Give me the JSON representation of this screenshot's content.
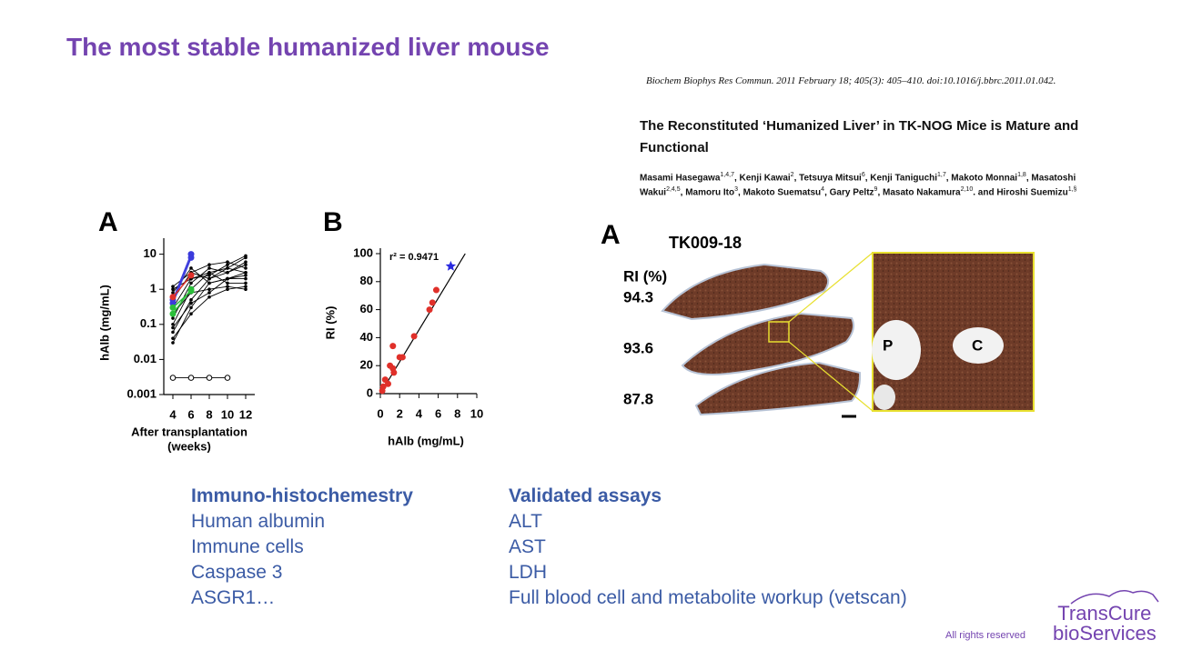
{
  "header": {
    "title": "The most stable humanized liver mouse"
  },
  "paper": {
    "citation": "Biochem Biophys Res Commun. 2011 February 18; 405(3): 405–410. doi:10.1016/j.bbrc.2011.01.042.",
    "title": "The Reconstituted ‘Humanized Liver’ in TK-NOG Mice is Mature and Functional",
    "authors": [
      {
        "text": "Masami Hasegawa",
        "sup": "1,4,7"
      },
      {
        "text": ", Kenji Kawai",
        "sup": "2"
      },
      {
        "text": ", Tetsuya Mitsui",
        "sup": "6"
      },
      {
        "text": ", Kenji Taniguchi",
        "sup": "1,7"
      },
      {
        "text": ", Makoto Monnai",
        "sup": "1,8"
      },
      {
        "text": ", Masatoshi Wakui",
        "sup": "2,4,5"
      },
      {
        "text": ", Mamoru Ito",
        "sup": "3"
      },
      {
        "text": ", Makoto Suematsu",
        "sup": "4"
      },
      {
        "text": ", Gary Peltz",
        "sup": "9"
      },
      {
        "text": ", Masato Nakamura",
        "sup": "2,10"
      },
      {
        "text": ". and Hiroshi Suemizu",
        "sup": "1,§"
      }
    ]
  },
  "figure_a": {
    "letter": "A",
    "chart": {
      "type": "line",
      "log_y": true,
      "ylabel": "hAlb (mg/mL)",
      "xlabel": [
        "After transplantation",
        "(weeks)"
      ],
      "xlim": [
        3,
        13
      ],
      "xticks": [
        4,
        6,
        8,
        10,
        12
      ],
      "ylim": [
        0.001,
        20
      ],
      "yticks": [
        0.001,
        0.01,
        0.1,
        1,
        10
      ],
      "series": [
        {
          "color": "#000000",
          "marker": "dot",
          "x": [
            4,
            6,
            8,
            10,
            12
          ],
          "values": [
            0.03,
            0.3,
            1.5,
            2,
            3
          ]
        },
        {
          "color": "#000000",
          "marker": "dot",
          "x": [
            4,
            6,
            8,
            10,
            12
          ],
          "values": [
            0.06,
            0.5,
            2,
            3,
            5
          ]
        },
        {
          "color": "#000000",
          "marker": "dot",
          "x": [
            4,
            6,
            8,
            10,
            12
          ],
          "values": [
            0.1,
            1,
            3,
            4,
            8
          ]
        },
        {
          "color": "#000000",
          "marker": "dot",
          "x": [
            4,
            6,
            8,
            10,
            12
          ],
          "values": [
            0.15,
            1.5,
            4,
            3,
            6
          ]
        },
        {
          "color": "#000000",
          "marker": "dot",
          "x": [
            4,
            6,
            8,
            10,
            12
          ],
          "values": [
            0.3,
            2,
            2.5,
            5,
            9
          ]
        },
        {
          "color": "#000000",
          "marker": "dot",
          "x": [
            4,
            6,
            8,
            10,
            12
          ],
          "values": [
            0.5,
            3,
            5,
            6,
            4
          ]
        },
        {
          "color": "#000000",
          "marker": "dot",
          "x": [
            4,
            6,
            8,
            10,
            12
          ],
          "values": [
            0.8,
            4,
            1.5,
            2,
            2
          ]
        },
        {
          "color": "#000000",
          "marker": "dot",
          "x": [
            4,
            6,
            8,
            10,
            12
          ],
          "values": [
            1,
            2,
            3,
            1.5,
            1.5
          ]
        },
        {
          "color": "#000000",
          "marker": "dot",
          "x": [
            4,
            6,
            8,
            10,
            12
          ],
          "values": [
            0.2,
            0.8,
            1,
            1.2,
            1
          ]
        },
        {
          "color": "#000000",
          "marker": "dot",
          "x": [
            4,
            6,
            8,
            10,
            12
          ],
          "values": [
            0.08,
            0.4,
            0.8,
            2,
            2.5
          ]
        },
        {
          "color": "#000000",
          "marker": "dot",
          "x": [
            4,
            6,
            8,
            10,
            12
          ],
          "values": [
            0.04,
            0.2,
            0.6,
            1,
            1.2
          ]
        },
        {
          "color": "#000000",
          "marker": "dot",
          "x": [
            4,
            6,
            8,
            10,
            12
          ],
          "values": [
            1.2,
            3,
            2,
            4,
            3
          ]
        },
        {
          "color": "#3b3bdc",
          "marker": "big",
          "x": [
            4,
            6
          ],
          "values": [
            0.5,
            10
          ]
        },
        {
          "color": "#3b3bdc",
          "marker": "big",
          "x": [
            4,
            6
          ],
          "values": [
            0.4,
            8
          ]
        },
        {
          "color": "#e0302a",
          "marker": "big",
          "x": [
            4,
            6
          ],
          "values": [
            0.6,
            2.5
          ]
        },
        {
          "color": "#2bbf3a",
          "marker": "big",
          "x": [
            4,
            6
          ],
          "values": [
            0.2,
            1
          ]
        },
        {
          "color": "#2bbf3a",
          "marker": "big",
          "x": [
            4,
            6
          ],
          "values": [
            0.3,
            0.9
          ]
        },
        {
          "color": "#000000",
          "marker": "open",
          "x": [
            4,
            6,
            8,
            10
          ],
          "values": [
            0.003,
            0.003,
            0.003,
            0.003
          ]
        }
      ]
    }
  },
  "figure_b": {
    "letter": "B",
    "chart": {
      "type": "scatter",
      "annotation": "r² = 0.9471",
      "ylabel": "RI  (%)",
      "xlabel": "hAlb (mg/mL)",
      "xlim": [
        0,
        10
      ],
      "xticks": [
        0,
        2,
        4,
        6,
        8,
        10
      ],
      "ylim": [
        0,
        100
      ],
      "yticks": [
        0,
        20,
        40,
        60,
        80,
        100
      ],
      "fit": {
        "x": [
          0,
          8.8
        ],
        "y": [
          0,
          100
        ]
      },
      "series": [
        {
          "color": "#e0302a",
          "marker": "circle",
          "x": [
            0.2,
            0.3,
            0.5,
            0.8,
            1,
            1.3,
            1.3,
            1.4,
            2,
            2.3,
            3.5,
            5.1,
            5.4,
            5.8
          ],
          "values": [
            2,
            5,
            10,
            7,
            20,
            18,
            34,
            15,
            26,
            26,
            41,
            60,
            65,
            74
          ]
        },
        {
          "color": "#2a2ae0",
          "marker": "star",
          "x": [
            7.3
          ],
          "values": [
            91
          ]
        }
      ]
    }
  },
  "figure_c": {
    "letter": "A",
    "sample": "TK009-18",
    "ri_label": "RI (%)",
    "ri_values": [
      94.3,
      93.6,
      87.8
    ],
    "zoom_labels": [
      "P",
      "C"
    ]
  },
  "lists": [
    {
      "heading": "Immuno-histochemestry",
      "items": [
        "Human albumin",
        "Immune cells",
        "Caspase 3",
        "ASGR1…"
      ]
    },
    {
      "heading": "Validated assays",
      "items": [
        "ALT",
        "AST",
        "LDH",
        "Full blood cell and metabolite workup (vetscan)"
      ]
    }
  ],
  "footer": {
    "rights": "All rights reserved",
    "logo": [
      "TransCure",
      "bioServices"
    ]
  }
}
